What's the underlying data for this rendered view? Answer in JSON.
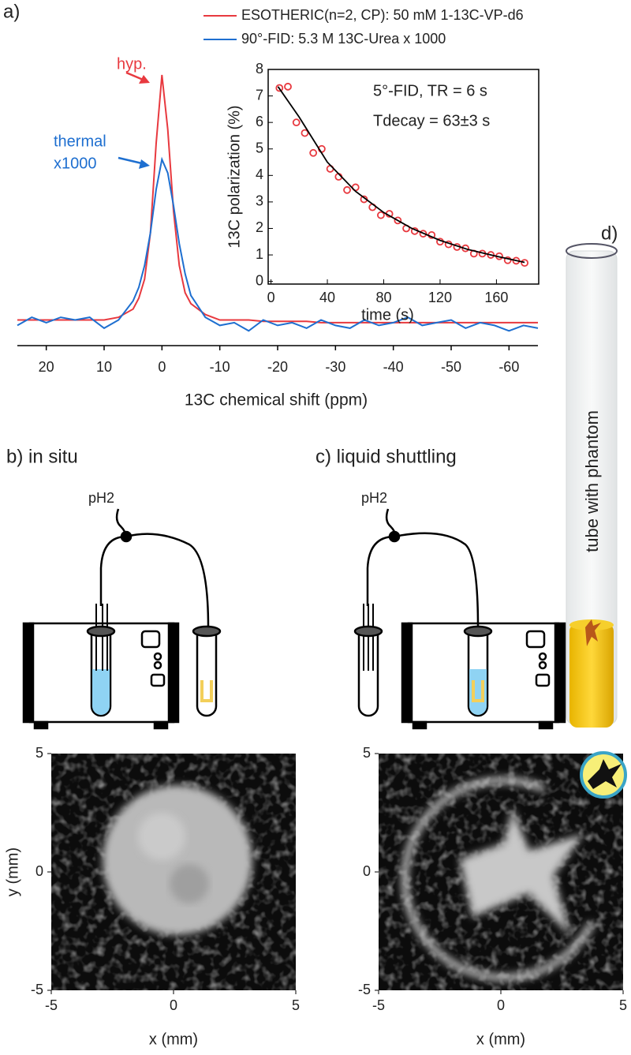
{
  "labels": {
    "panel_a": "a)",
    "panel_b": "b)  in situ",
    "panel_c": "c)  liquid shuttling",
    "panel_d": "d)",
    "ph2_b": "pH2",
    "ph2_c": "pH2",
    "tube": "tube with phantom"
  },
  "chart_data": [
    {
      "type": "line",
      "xlabel": "13C chemical shift (ppm)",
      "xlim": [
        25,
        -65
      ],
      "xticks": [
        20,
        10,
        0,
        -10,
        -20,
        -30,
        -40,
        -50,
        -60
      ],
      "ylim": [
        0,
        1
      ],
      "annotations": [
        "hyp.",
        "thermal",
        "x1000"
      ],
      "x": [
        25,
        22.5,
        20,
        17.5,
        15,
        12.5,
        10,
        7.5,
        5,
        4,
        3,
        2,
        1,
        0,
        -1,
        -2,
        -3,
        -4,
        -5,
        -7.5,
        -10,
        -12.5,
        -15,
        -17.5,
        -20,
        -22.5,
        -25,
        -27.5,
        -30,
        -32.5,
        -35,
        -37.5,
        -40,
        -42.5,
        -45,
        -47.5,
        -50,
        -52.5,
        -55,
        -57.5,
        -60,
        -62.5,
        -65
      ],
      "series": [
        {
          "name": "ESOTHERIC(n=2, CP): 50 mM 1-13C-VP-d6",
          "color": "#e8393f",
          "values": [
            0.1,
            0.1,
            0.1,
            0.1,
            0.1,
            0.1,
            0.1,
            0.11,
            0.14,
            0.18,
            0.25,
            0.42,
            0.75,
            1.0,
            0.8,
            0.5,
            0.3,
            0.2,
            0.16,
            0.12,
            0.1,
            0.1,
            0.1,
            0.095,
            0.095,
            0.095,
            0.095,
            0.09,
            0.09,
            0.09,
            0.09,
            0.09,
            0.09,
            0.09,
            0.09,
            0.09,
            0.09,
            0.09,
            0.09,
            0.09,
            0.09,
            0.09,
            0.09
          ]
        },
        {
          "name": "90°-FID: 5.3 M 13C-Urea  x 1000",
          "color": "#1e6fd0",
          "values": [
            0.08,
            0.11,
            0.09,
            0.11,
            0.1,
            0.11,
            0.07,
            0.1,
            0.17,
            0.22,
            0.3,
            0.42,
            0.58,
            0.69,
            0.64,
            0.52,
            0.38,
            0.27,
            0.19,
            0.11,
            0.08,
            0.09,
            0.06,
            0.1,
            0.08,
            0.09,
            0.07,
            0.1,
            0.08,
            0.07,
            0.1,
            0.08,
            0.09,
            0.11,
            0.08,
            0.09,
            0.1,
            0.07,
            0.09,
            0.08,
            0.06,
            0.08,
            0.07
          ]
        }
      ]
    },
    {
      "type": "scatter",
      "xlabel": "time (s)",
      "ylabel": "13C polarization (%)",
      "xlim": [
        -2,
        190
      ],
      "xticks": [
        0,
        40,
        80,
        120,
        160
      ],
      "ylim": [
        -0.1,
        8
      ],
      "yticks": [
        0,
        1,
        2,
        3,
        4,
        5,
        6,
        7,
        8
      ],
      "annotations": [
        "5°-FID, TR = 6 s",
        "Tdecay = 63±3 s"
      ],
      "series": [
        {
          "mode": "markers",
          "color": "#e8393f",
          "x": [
            6,
            12,
            18,
            24,
            30,
            36,
            42,
            48,
            54,
            60,
            66,
            72,
            78,
            84,
            90,
            96,
            102,
            108,
            114,
            120,
            126,
            132,
            138,
            144,
            150,
            156,
            162,
            168,
            174,
            180
          ],
          "values": [
            7.3,
            7.35,
            6.0,
            5.6,
            4.85,
            5.0,
            4.25,
            3.95,
            3.45,
            3.55,
            3.1,
            2.8,
            2.5,
            2.55,
            2.3,
            2.0,
            1.9,
            1.8,
            1.75,
            1.5,
            1.4,
            1.3,
            1.25,
            1.05,
            1.05,
            1.0,
            0.95,
            0.8,
            0.78,
            0.7
          ]
        },
        {
          "mode": "line",
          "color": "#000000",
          "x": [
            5,
            20,
            40,
            60,
            80,
            100,
            120,
            140,
            160,
            180
          ],
          "values": [
            7.35,
            6.2,
            4.5,
            3.4,
            2.6,
            2.0,
            1.55,
            1.2,
            0.95,
            0.72
          ]
        }
      ]
    },
    {
      "type": "image",
      "xlabel": "x (mm)",
      "ylabel": "y (mm)",
      "xlim": [
        -5,
        5
      ],
      "xticks": [
        -5,
        0,
        5
      ],
      "ylim": [
        -5,
        5
      ],
      "yticks": [
        -5,
        0,
        5
      ]
    },
    {
      "type": "image",
      "xlabel": "x (mm)",
      "xlim": [
        -5,
        5
      ],
      "xticks": [
        -5,
        0,
        5
      ],
      "ylim": [
        -5,
        5
      ],
      "yticks": [
        -5,
        0,
        5
      ]
    }
  ]
}
